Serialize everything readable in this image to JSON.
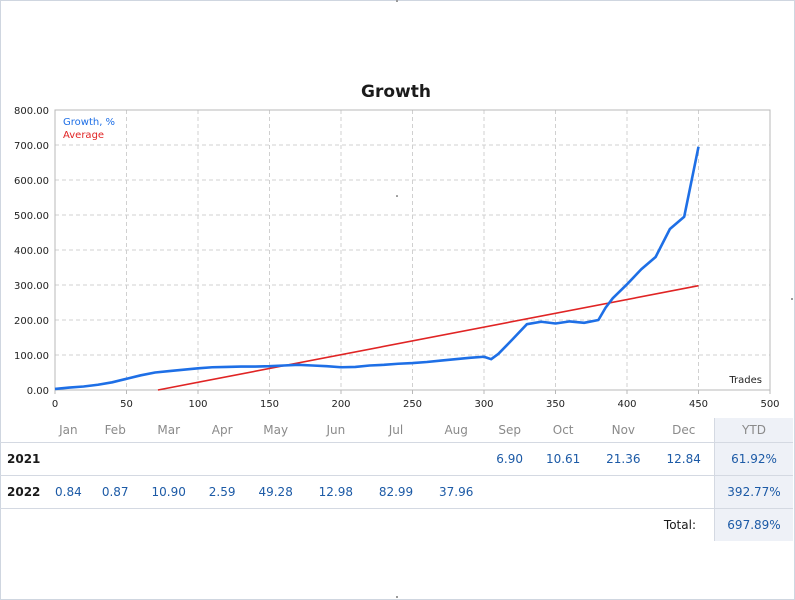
{
  "chart_data": {
    "type": "line",
    "title": "Growth",
    "xlabel": "Trades",
    "ylabel": "",
    "xlim": [
      0,
      500
    ],
    "ylim": [
      0,
      800
    ],
    "x_ticks": [
      0,
      50,
      100,
      150,
      200,
      250,
      300,
      350,
      400,
      450,
      500
    ],
    "y_ticks": [
      "0.00",
      "100.00",
      "200.00",
      "300.00",
      "400.00",
      "500.00",
      "600.00",
      "700.00",
      "800.00"
    ],
    "grid": true,
    "legend_position": "top-left",
    "series": [
      {
        "name": "Growth, %",
        "color": "#1e6fe6",
        "x": [
          0,
          10,
          20,
          30,
          40,
          50,
          60,
          70,
          80,
          90,
          100,
          110,
          120,
          130,
          140,
          150,
          160,
          170,
          180,
          190,
          200,
          210,
          220,
          230,
          240,
          250,
          260,
          270,
          280,
          290,
          300,
          305,
          310,
          320,
          330,
          340,
          350,
          360,
          370,
          380,
          385,
          390,
          400,
          410,
          420,
          430,
          440,
          450
        ],
        "y": [
          3,
          7,
          10,
          15,
          22,
          32,
          42,
          50,
          54,
          58,
          62,
          65,
          66,
          67,
          67,
          68,
          70,
          72,
          70,
          68,
          65,
          66,
          70,
          72,
          75,
          77,
          80,
          84,
          88,
          92,
          95,
          88,
          103,
          145,
          188,
          195,
          190,
          196,
          192,
          200,
          235,
          262,
          302,
          345,
          380,
          460,
          495,
          695
        ]
      },
      {
        "name": "Average",
        "color": "#e02424",
        "x": [
          72,
          450
        ],
        "y": [
          0,
          298
        ]
      }
    ]
  },
  "table": {
    "months": [
      "Jan",
      "Feb",
      "Mar",
      "Apr",
      "May",
      "Jun",
      "Jul",
      "Aug",
      "Sep",
      "Oct",
      "Nov",
      "Dec"
    ],
    "ytd_label": "YTD",
    "rows": [
      {
        "year": "2021",
        "values": [
          "",
          "",
          "",
          "",
          "",
          "",
          "",
          "",
          "6.90",
          "10.61",
          "21.36",
          "12.84"
        ],
        "ytd": "61.92%"
      },
      {
        "year": "2022",
        "values": [
          "0.84",
          "0.87",
          "10.90",
          "2.59",
          "49.28",
          "12.98",
          "82.99",
          "37.96",
          "",
          "",
          "",
          ""
        ],
        "ytd": "392.77%"
      }
    ],
    "total_label": "Total:",
    "total_value": "697.89%"
  }
}
